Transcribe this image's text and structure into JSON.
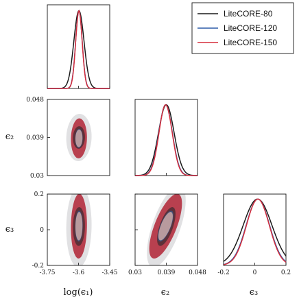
{
  "chart_data": {
    "type": "triangle-corner",
    "parameters": [
      {
        "key": "p1",
        "axis_label": "log(ϵ₁)",
        "ticks": [
          "-3.75",
          "-3.6",
          "-3.45"
        ],
        "tick_values": [
          -3.75,
          -3.6,
          -3.45
        ],
        "range": [
          -3.75,
          -3.45
        ]
      },
      {
        "key": "p2",
        "axis_label": "ϵ₂",
        "ticks": [
          "0.03",
          "0.039",
          "0.048"
        ],
        "tick_values": [
          0.03,
          0.039,
          0.048
        ],
        "range": [
          0.03,
          0.048
        ]
      },
      {
        "key": "p3",
        "axis_label": "ϵ₃",
        "ticks": [
          "-0.2",
          "0",
          "0.2"
        ],
        "tick_values": [
          -0.2,
          0,
          0.2
        ],
        "range": [
          -0.2,
          0.2
        ]
      }
    ],
    "series": [
      {
        "name": "LiteCORE-80",
        "color": "#1a1a1a",
        "means": [
          -3.598,
          0.039,
          0.018
        ],
        "sigmas": [
          0.0245,
          0.00225,
          0.092
        ],
        "rho": {
          "p1_p2": 0.05,
          "p1_p3": 0.05,
          "p2_p3": 0.65
        }
      },
      {
        "name": "LiteCORE-120",
        "color": "#2b5aa8",
        "means": [
          -3.598,
          0.0388,
          0.02
        ],
        "sigmas": [
          0.0158,
          0.00195,
          0.075
        ],
        "rho": {
          "p1_p2": 0.05,
          "p1_p3": 0.05,
          "p2_p3": 0.7
        }
      },
      {
        "name": "LiteCORE-150",
        "color": "#d62e3c",
        "means": [
          -3.598,
          0.0388,
          0.02
        ],
        "sigmas": [
          0.0155,
          0.0019,
          0.073
        ],
        "rho": {
          "p1_p2": 0.05,
          "p1_p3": 0.05,
          "p2_p3": 0.7
        }
      }
    ],
    "contour_colors": {
      "outer_fill": "#e1e1e3",
      "inner_fill": "#b3b3b8",
      "red_outer": "#b8404f",
      "red_inner": "#b89a9e"
    },
    "legend_position": "top-right"
  }
}
